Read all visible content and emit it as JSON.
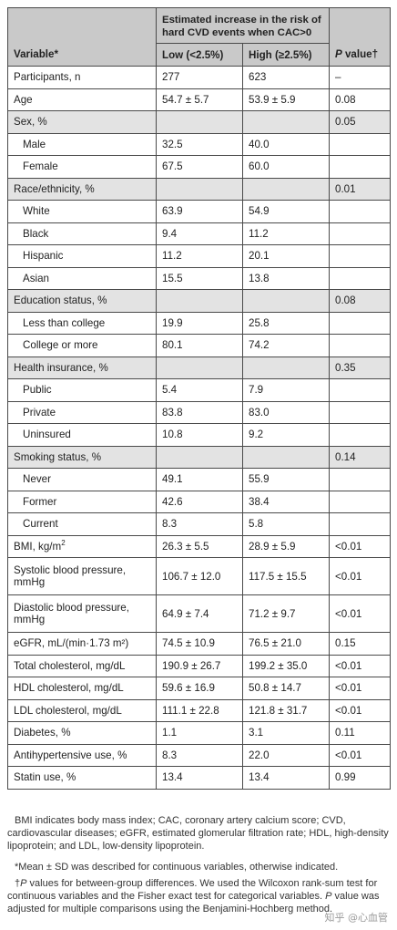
{
  "header": {
    "group": "Estimated increase in the risk of hard CVD events when CAC>0",
    "variable": "Variable*",
    "low": "Low (<2.5%)",
    "high": "High (≥2.5%)",
    "p_italic": "P",
    "p_rest": " value†"
  },
  "rows": [
    {
      "type": "data",
      "label": "Participants, n",
      "low": "277",
      "high": "623",
      "p": "–"
    },
    {
      "type": "data",
      "label": "Age",
      "low": "54.7 ± 5.7",
      "high": "53.9 ± 5.9",
      "p": "0.08"
    },
    {
      "type": "section",
      "label": "Sex, %",
      "p": "0.05"
    },
    {
      "type": "sub",
      "label": "Male",
      "low": "32.5",
      "high": "40.0"
    },
    {
      "type": "sub",
      "label": "Female",
      "low": "67.5",
      "high": "60.0"
    },
    {
      "type": "section",
      "label": "Race/ethnicity, %",
      "p": "0.01"
    },
    {
      "type": "sub",
      "label": "White",
      "low": "63.9",
      "high": "54.9"
    },
    {
      "type": "sub",
      "label": "Black",
      "low": "9.4",
      "high": "11.2"
    },
    {
      "type": "sub",
      "label": "Hispanic",
      "low": "11.2",
      "high": "20.1"
    },
    {
      "type": "sub",
      "label": "Asian",
      "low": "15.5",
      "high": "13.8"
    },
    {
      "type": "section",
      "label": "Education status, %",
      "p": "0.08"
    },
    {
      "type": "sub",
      "label": "Less than college",
      "low": "19.9",
      "high": "25.8"
    },
    {
      "type": "sub",
      "label": "College or more",
      "low": "80.1",
      "high": "74.2"
    },
    {
      "type": "section",
      "label": "Health insurance, %",
      "p": "0.35"
    },
    {
      "type": "sub",
      "label": "Public",
      "low": "5.4",
      "high": "7.9"
    },
    {
      "type": "sub",
      "label": "Private",
      "low": "83.8",
      "high": "83.0"
    },
    {
      "type": "sub",
      "label": "Uninsured",
      "low": "10.8",
      "high": "9.2"
    },
    {
      "type": "section",
      "label": "Smoking status, %",
      "p": "0.14"
    },
    {
      "type": "sub",
      "label": "Never",
      "low": "49.1",
      "high": "55.9"
    },
    {
      "type": "sub",
      "label": "Former",
      "low": "42.6",
      "high": "38.4"
    },
    {
      "type": "sub",
      "label": "Current",
      "low": "8.3",
      "high": "5.8"
    },
    {
      "type": "data",
      "label": "BMI, kg/m",
      "sup": "2",
      "low": "26.3 ± 5.5",
      "high": "28.9 ± 5.9",
      "p": "<0.01"
    },
    {
      "type": "tall",
      "label": "Systolic blood pressure, mmHg",
      "low": "106.7 ± 12.0",
      "high": "117.5 ± 15.5",
      "p": "<0.01"
    },
    {
      "type": "tall",
      "label": "Diastolic blood pressure, mmHg",
      "low": "64.9 ± 7.4",
      "high": "71.2 ± 9.7",
      "p": "<0.01"
    },
    {
      "type": "data",
      "label": "eGFR, mL/(min·1.73 m²)",
      "low": "74.5 ± 10.9",
      "high": "76.5 ± 21.0",
      "p": "0.15"
    },
    {
      "type": "data",
      "label": "Total cholesterol, mg/dL",
      "low": "190.9 ± 26.7",
      "high": "199.2 ± 35.0",
      "p": "<0.01"
    },
    {
      "type": "data",
      "label": "HDL cholesterol, mg/dL",
      "low": "59.6 ± 16.9",
      "high": "50.8 ± 14.7",
      "p": "<0.01"
    },
    {
      "type": "data",
      "label": "LDL cholesterol, mg/dL",
      "low": "111.1 ± 22.8",
      "high": "121.8 ± 31.7",
      "p": "<0.01"
    },
    {
      "type": "data",
      "label": "Diabetes, %",
      "low": "1.1",
      "high": "3.1",
      "p": "0.11"
    },
    {
      "type": "data",
      "label": "Antihypertensive use, %",
      "low": "8.3",
      "high": "22.0",
      "p": "<0.01"
    },
    {
      "type": "data",
      "label": "Statin use, %",
      "low": "13.4",
      "high": "13.4",
      "p": "0.99"
    }
  ],
  "notes": {
    "abbrev": "BMI indicates body mass index; CAC, coronary artery calcium score; CVD, cardiovascular diseases; eGFR, estimated glomerular filtration rate; HDL, high-density lipoprotein; and LDL, low-density lipoprotein.",
    "mean": "*Mean ± SD was described for continuous variables, otherwise indicated.",
    "p_prefix": "†",
    "p_italic": "P",
    "p_text": " values for between-group differences. We used the Wilcoxon rank-sum test for continuous variables and the Fisher exact test for categorical variables.",
    "adj_italic": "P",
    "adj_text": " value was adjusted for multiple comparisons using the Benjamini-Hochberg method."
  },
  "watermark": "知乎 @心血管"
}
